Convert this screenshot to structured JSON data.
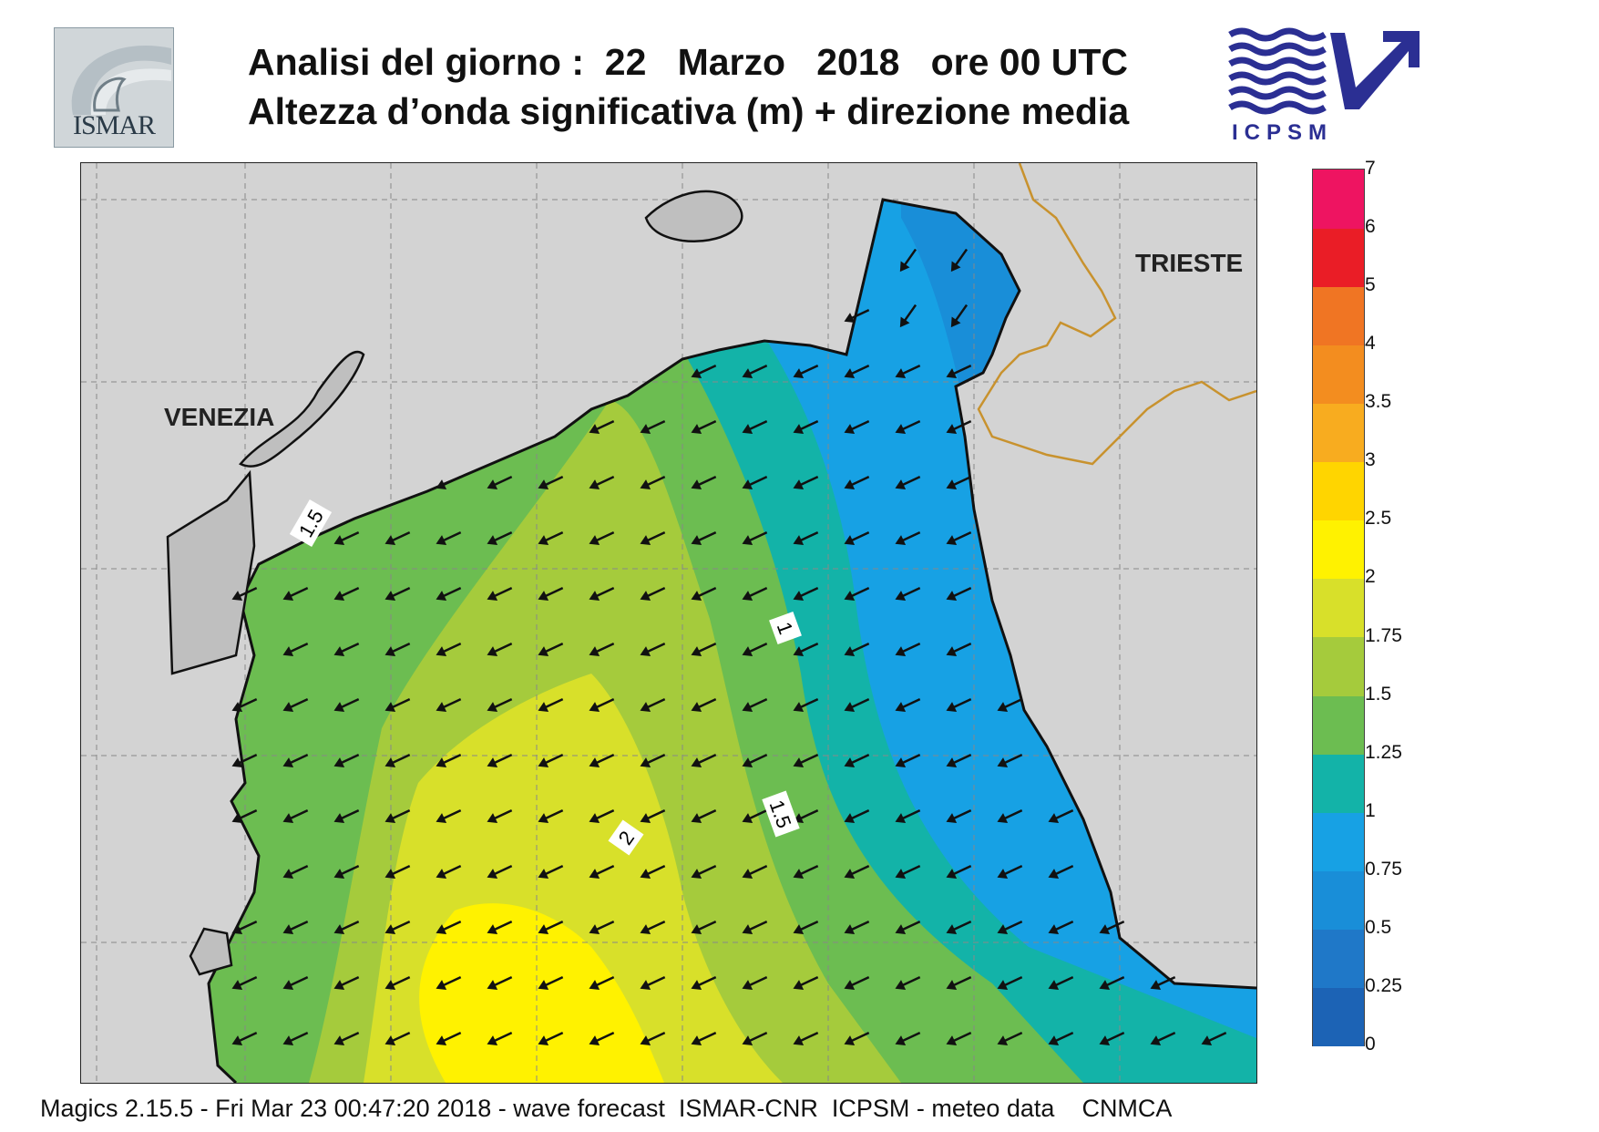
{
  "header": {
    "title_line1": "Analisi del giorno :  22   Marzo   2018   ore 00 UTC",
    "title_line2": "Altezza d’onda significativa (m) + direzione media",
    "logo_left_text": "ISMAR",
    "logo_right_text": "ICPSM"
  },
  "map": {
    "cities": [
      "VENEZIA",
      "TRIESTE"
    ],
    "contour_labels": [
      "1.5",
      "1",
      "1.5",
      "2"
    ],
    "arrow_direction": "south-west",
    "land_color": "#d3d3d3",
    "coastline_color": "#111111",
    "border_color": "#c8922e"
  },
  "colorbar": {
    "ticks": [
      "7",
      "6",
      "5",
      "4",
      "3.5",
      "3",
      "2.5",
      "2",
      "1.75",
      "1.5",
      "1.25",
      "1",
      "0.75",
      "0.5",
      "0.25",
      "0"
    ],
    "colors": [
      "#1c63b5",
      "#1f78c8",
      "#198ed8",
      "#17a1e4",
      "#13b3a8",
      "#6cbd51",
      "#a5cb3c",
      "#d8e02a",
      "#fff200",
      "#ffd500",
      "#f8ac1f",
      "#f38d1f",
      "#f07523",
      "#ea1d26",
      "#ee1461"
    ]
  },
  "footer": {
    "text": "Magics 2.15.5 - Fri Mar 23 00:47:20 2018 - wave forecast  ISMAR-CNR  ICPSM - meteo data    CNMCA"
  }
}
